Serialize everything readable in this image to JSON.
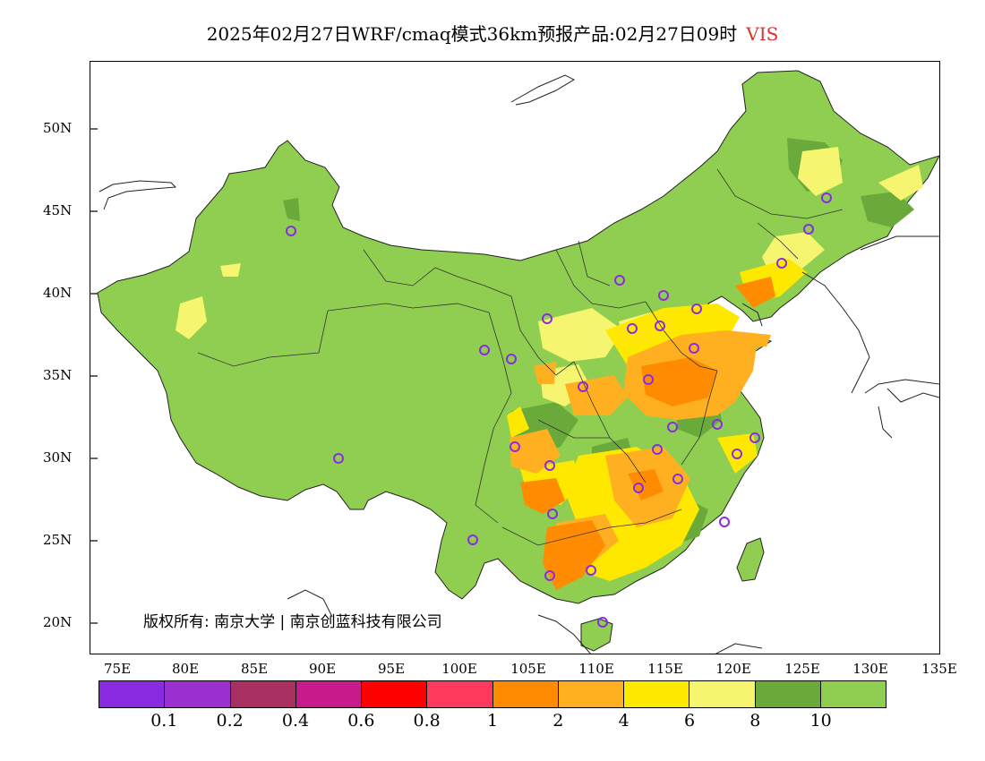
{
  "title": {
    "main": "2025年02月27日WRF/cmaq模式36km预报产品:02月27日09时",
    "variable": "VIS",
    "variable_color": "#e03030"
  },
  "axes": {
    "lat_labels": [
      "50N",
      "45N",
      "40N",
      "35N",
      "30N",
      "25N",
      "20N"
    ],
    "lon_labels": [
      "75E",
      "80E",
      "85E",
      "90E",
      "95E",
      "100E",
      "105E",
      "110E",
      "115E",
      "120E",
      "125E",
      "130E",
      "135E"
    ]
  },
  "legend": {
    "colors": [
      "#8a2be2",
      "#9b30d0",
      "#a83060",
      "#c81a8a",
      "#ff0000",
      "#ff3a5c",
      "#ff8c00",
      "#ffb020",
      "#ffe800",
      "#f5f570",
      "#6aaa3a",
      "#8fce50"
    ],
    "labels": [
      "0.1",
      "0.2",
      "0.4",
      "0.6",
      "0.8",
      "1",
      "2",
      "4",
      "6",
      "8",
      "10"
    ]
  },
  "copyright": "版权所有: 南京大学 | 南京创蓝科技有限公司",
  "map": {
    "stations_marker_color": "#8a2be2",
    "land_color": "#8fce50",
    "colors": {
      "dark_green": "#6aaa3a",
      "light_yellow": "#f5f570",
      "yellow": "#ffe800",
      "orange_light": "#ffb020",
      "orange": "#ff8c00"
    }
  }
}
